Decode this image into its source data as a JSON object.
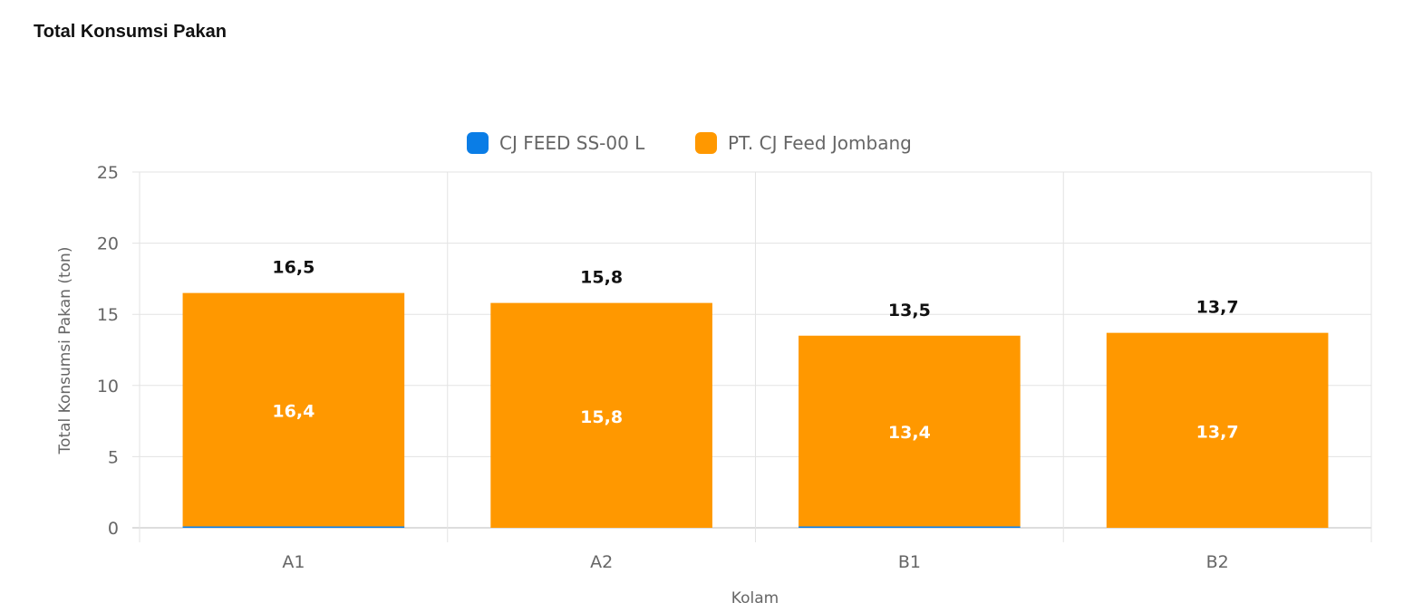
{
  "card": {
    "title": "Total Konsumsi Pakan"
  },
  "chart_data": {
    "type": "bar",
    "stacked": true,
    "title": "",
    "xlabel": "Kolam",
    "ylabel": "Total Konsumsi Pakan (ton)",
    "ylim": [
      0,
      25
    ],
    "yticks": [
      "0",
      "5",
      "10",
      "15",
      "20",
      "25"
    ],
    "grid": true,
    "legend_position": "top",
    "categories": [
      "A1",
      "A2",
      "B1",
      "B2"
    ],
    "series": [
      {
        "name": "CJ FEED SS-00 L",
        "color": "#0a7de6",
        "values": [
          0.1,
          0,
          0.1,
          0
        ]
      },
      {
        "name": "PT. CJ Feed Jombang",
        "color": "#ff9800",
        "values": [
          16.4,
          15.8,
          13.4,
          13.7
        ],
        "labels": [
          "16,4",
          "15,8",
          "13,4",
          "13,7"
        ]
      }
    ],
    "totals": [
      16.5,
      15.8,
      13.5,
      13.7
    ],
    "total_labels": [
      "16,5",
      "15,8",
      "13,5",
      "13,7"
    ]
  }
}
